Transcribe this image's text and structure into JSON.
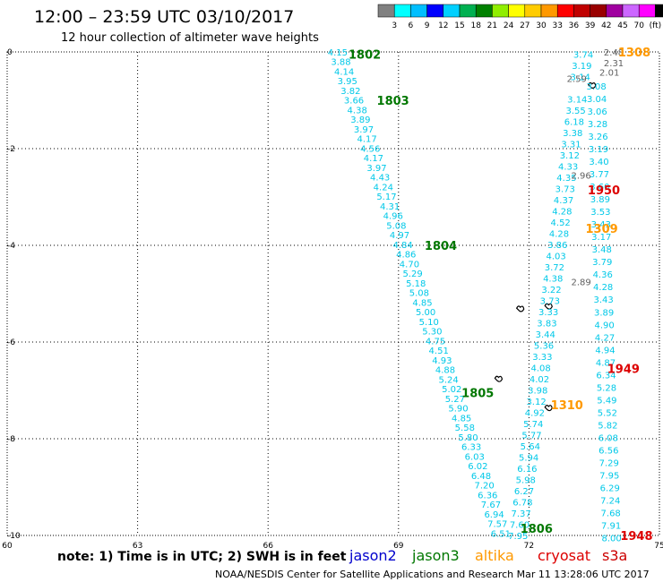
{
  "header": {
    "title": "12:00 – 23:59 UTC 03/10/2017",
    "subtitle": "12 hour collection of altimeter wave heights"
  },
  "colorbar": {
    "colors": [
      "#808080",
      "#00ffff",
      "#00bfff",
      "#0000ff",
      "#00d0ff",
      "#00b050",
      "#008000",
      "#90ee00",
      "#ffff00",
      "#ffcc00",
      "#ff9900",
      "#ff0000",
      "#c00000",
      "#990000",
      "#a000a0",
      "#cc66ff",
      "#ff00ff",
      "#000000"
    ],
    "labels": [
      "3",
      "6",
      "9",
      "12",
      "15",
      "18",
      "21",
      "24",
      "27",
      "30",
      "33",
      "36",
      "39",
      "42",
      "45",
      "70",
      "(ft)"
    ]
  },
  "axes": {
    "x_ticks": [
      "60",
      "63",
      "66",
      "69",
      "72",
      "75"
    ],
    "y_ticks": [
      "0",
      "-2",
      "-4",
      "-6",
      "-8",
      "-10"
    ],
    "x_range": [
      60,
      75
    ],
    "y_range": [
      -10,
      0
    ]
  },
  "colors": {
    "jason2": "#0000cc",
    "jason3": "#007700",
    "altika": "#ff9900",
    "cryosat": "#dd0000",
    "s3a": "#cc0000",
    "swh": "#00c8e8",
    "swh_grey": "#606060"
  },
  "labels": {
    "note": "note:  1) Time is in UTC;  2) SWH is in feet",
    "jason2": "jason2",
    "jason3": "jason3",
    "altika": "altika",
    "cryosat": "cryosat",
    "s3a": "s3a",
    "footer": "NOAA/NESDIS Center for Satellite Applications and Research   Mar 11 13:28:06 UTC 2017"
  },
  "time_labels": [
    {
      "text": "1802",
      "sat": "jason3",
      "lon": 67.85,
      "lat": -0.05
    },
    {
      "text": "1803",
      "sat": "jason3",
      "lon": 68.5,
      "lat": -1.0
    },
    {
      "text": "1804",
      "sat": "jason3",
      "lon": 69.6,
      "lat": -4.0
    },
    {
      "text": "1805",
      "sat": "jason3",
      "lon": 70.45,
      "lat": -7.05
    },
    {
      "text": "1806",
      "sat": "jason3",
      "lon": 71.8,
      "lat": -9.85
    },
    {
      "text": "1308",
      "sat": "altika",
      "lon": 74.05,
      "lat": -0.0
    },
    {
      "text": "1309",
      "sat": "altika",
      "lon": 73.3,
      "lat": -3.65
    },
    {
      "text": "1310",
      "sat": "altika",
      "lon": 72.5,
      "lat": -7.3
    },
    {
      "text": "1950",
      "sat": "cryosat",
      "lon": 73.35,
      "lat": -2.85
    },
    {
      "text": "1949",
      "sat": "cryosat",
      "lon": 73.8,
      "lat": -6.55
    },
    {
      "text": "1948",
      "sat": "cryosat",
      "lon": 74.1,
      "lat": -10.0
    }
  ],
  "tracks": [
    {
      "sat": "jason3",
      "start": [
        67.6,
        0.0
      ],
      "end": [
        71.35,
        -9.95
      ],
      "values": [
        "4.15",
        "3.88",
        "4.14",
        "3.95",
        "3.82",
        "3.66",
        "4.38",
        "3.89",
        "3.97",
        "4.17",
        "4.56",
        "4.17",
        "3.97",
        "4.43",
        "4.24",
        "5.17",
        "4.31",
        "4.96",
        "5.08",
        "4.97",
        "4.84",
        "4.86",
        "4.70",
        "5.29",
        "5.18",
        "5.08",
        "4.85",
        "5.00",
        "5.10",
        "5.30",
        "4.75",
        "4.51",
        "4.93",
        "4.88",
        "5.24",
        "5.02",
        "5.27",
        "5.90",
        "4.85",
        "5.58",
        "5.80",
        "6.33",
        "6.03",
        "6.02",
        "6.48",
        "7.20",
        "6.36",
        "7.67",
        "6.94",
        "7.57",
        "6.51"
      ]
    },
    {
      "sat": "altika",
      "start": [
        73.25,
        -0.05
      ],
      "end": [
        71.75,
        -10.0
      ],
      "values": [
        "3.74",
        "3.19",
        "3.14",
        "",
        "3.14",
        "3.55",
        "6.18",
        "3.38",
        "3.31",
        "3.12",
        "4.33",
        "4.35",
        "3.73",
        "4.37",
        "4.28",
        "4.52",
        "4.28",
        "3.86",
        "4.03",
        "3.72",
        "4.38",
        "3.22",
        "3.73",
        "3.33",
        "3.83",
        "3.44",
        "5.36",
        "3.33",
        "4.08",
        "4.02",
        "3.98",
        "3.12",
        "4.92",
        "5.74",
        "5.77",
        "5.64",
        "5.94",
        "6.16",
        "5.98",
        "6.27",
        "6.78",
        "7.37",
        "7.60",
        "7.95"
      ]
    },
    {
      "sat": "cryosat",
      "start": [
        73.55,
        -0.7
      ],
      "end": [
        73.9,
        -10.05
      ],
      "values": [
        "3.08",
        "3.04",
        "3.06",
        "3.28",
        "3.26",
        "3.19",
        "3.40",
        "3.77",
        "3.60",
        "3.89",
        "3.53",
        "3.43",
        "3.17",
        "3.48",
        "3.79",
        "4.36",
        "4.28",
        "3.43",
        "3.89",
        "4.90",
        "4.27",
        "4.94",
        "4.87",
        "6.34",
        "5.28",
        "5.49",
        "5.52",
        "5.82",
        "6.08",
        "6.56",
        "7.29",
        "7.95",
        "6.29",
        "7.24",
        "7.68",
        "7.91",
        "8.00"
      ]
    }
  ],
  "grey_values": [
    {
      "text": "2.48",
      "lon": 73.95,
      "lat": 0.0
    },
    {
      "text": "2.31",
      "lon": 73.95,
      "lat": -0.22
    },
    {
      "text": "2.01",
      "lon": 73.85,
      "lat": -0.42
    },
    {
      "text": "2.59",
      "lon": 73.1,
      "lat": -0.55
    },
    {
      "text": "2.96",
      "lon": 73.2,
      "lat": -2.55
    },
    {
      "text": "2.89",
      "lon": 73.2,
      "lat": -4.75
    }
  ],
  "islands": [
    {
      "lon": 73.45,
      "lat": -0.68
    },
    {
      "lon": 71.8,
      "lat": -5.3
    },
    {
      "lon": 72.45,
      "lat": -5.25
    },
    {
      "lon": 71.3,
      "lat": -6.75
    },
    {
      "lon": 72.45,
      "lat": -7.35
    }
  ]
}
